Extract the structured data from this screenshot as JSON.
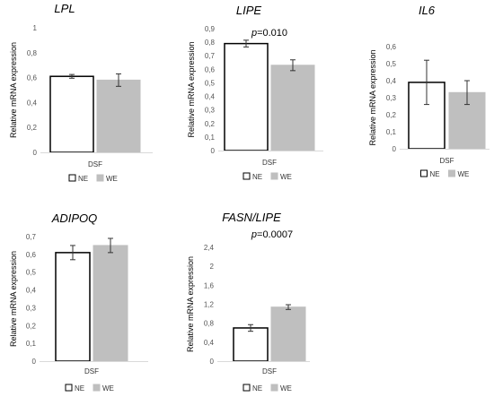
{
  "chart_data": [
    {
      "type": "bar",
      "title": "LPL",
      "annotation": "",
      "ylabel": "Relative mRNA expression",
      "categories": [
        "DSF"
      ],
      "ylim": [
        0,
        1
      ],
      "yticks": [
        "0",
        "0,2",
        "0,4",
        "0,6",
        "0,8",
        "1"
      ],
      "series": [
        {
          "name": "NE",
          "values": [
            0.61
          ],
          "error": [
            0.015
          ],
          "color": "#ffffff",
          "stroke": "#000000"
        },
        {
          "name": "WE",
          "values": [
            0.58
          ],
          "error": [
            0.05
          ],
          "color": "#bfbfbf",
          "stroke": "#bfbfbf"
        }
      ],
      "legend": "bottom"
    },
    {
      "type": "bar",
      "title": "LIPE",
      "annotation": "p=0.010",
      "ylabel": "Relative mRNA expression",
      "categories": [
        "DSF"
      ],
      "ylim": [
        0,
        0.9
      ],
      "yticks": [
        "0",
        "0,1",
        "0,2",
        "0,3",
        "0,4",
        "0,5",
        "0,6",
        "0,7",
        "0,8",
        "0,9"
      ],
      "series": [
        {
          "name": "NE",
          "values": [
            0.79
          ],
          "error": [
            0.025
          ],
          "color": "#ffffff",
          "stroke": "#000000"
        },
        {
          "name": "WE",
          "values": [
            0.63
          ],
          "error": [
            0.04
          ],
          "color": "#bfbfbf",
          "stroke": "#bfbfbf"
        }
      ],
      "legend": "bottom"
    },
    {
      "type": "bar",
      "title": "IL6",
      "annotation": "",
      "ylabel": "Relative mRNA expression",
      "categories": [
        "DSF"
      ],
      "ylim": [
        0,
        0.6
      ],
      "yticks": [
        "0",
        "0,1",
        "0,2",
        "0,3",
        "0,4",
        "0,5",
        "0,6"
      ],
      "series": [
        {
          "name": "NE",
          "values": [
            0.39
          ],
          "error": [
            0.13
          ],
          "color": "#ffffff",
          "stroke": "#000000"
        },
        {
          "name": "WE",
          "values": [
            0.33
          ],
          "error": [
            0.07
          ],
          "color": "#bfbfbf",
          "stroke": "#bfbfbf"
        }
      ],
      "legend": "bottom"
    },
    {
      "type": "bar",
      "title": "ADIPOQ",
      "annotation": "",
      "ylabel": "Relative mRNA expression",
      "categories": [
        "DSF"
      ],
      "ylim": [
        0,
        0.7
      ],
      "yticks": [
        "0",
        "0,1",
        "0,2",
        "0,3",
        "0,4",
        "0,5",
        "0,6",
        "0,7"
      ],
      "series": [
        {
          "name": "NE",
          "values": [
            0.61
          ],
          "error": [
            0.04
          ],
          "color": "#ffffff",
          "stroke": "#000000"
        },
        {
          "name": "WE",
          "values": [
            0.65
          ],
          "error": [
            0.04
          ],
          "color": "#bfbfbf",
          "stroke": "#bfbfbf"
        }
      ],
      "legend": "bottom"
    },
    {
      "type": "bar",
      "title": "FASN/LIPE",
      "annotation": "p=0.0007",
      "ylabel": "Relative mRNA expression",
      "categories": [
        "DSF"
      ],
      "ylim": [
        0,
        2.4
      ],
      "yticks": [
        "0",
        "0,4",
        "0,8",
        "1,2",
        "1,6",
        "2",
        "2,4"
      ],
      "series": [
        {
          "name": "NE",
          "values": [
            0.7
          ],
          "error": [
            0.07
          ],
          "color": "#ffffff",
          "stroke": "#000000"
        },
        {
          "name": "WE",
          "values": [
            1.14
          ],
          "error": [
            0.05
          ],
          "color": "#bfbfbf",
          "stroke": "#bfbfbf"
        }
      ],
      "legend": "bottom"
    }
  ]
}
